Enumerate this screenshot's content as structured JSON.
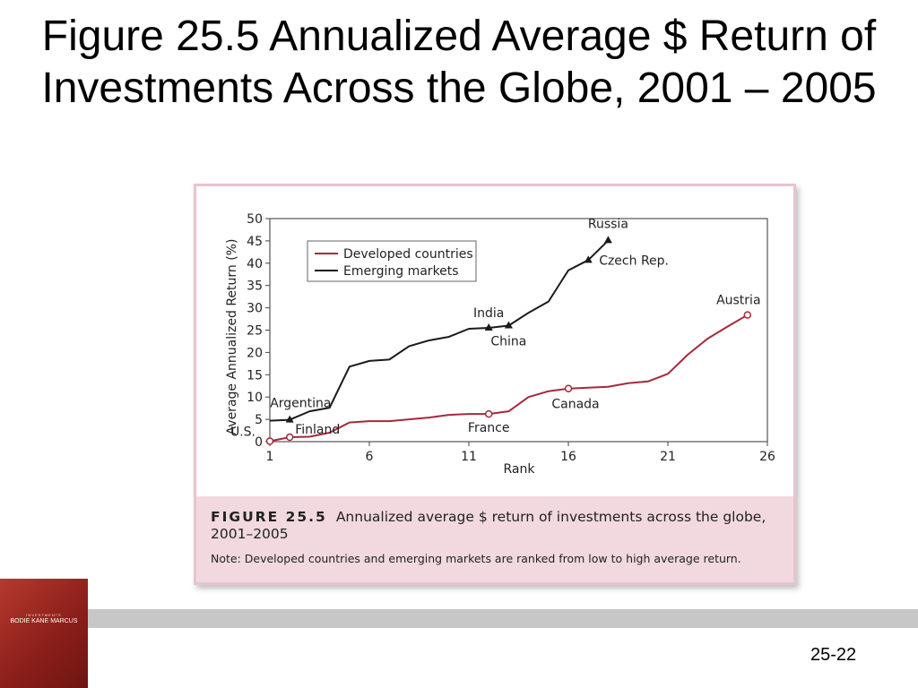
{
  "slide": {
    "title": "Figure 25.5 Annualized Average $ Return of Investments Across the Globe, 2001 – 2005",
    "page_number": "25-22"
  },
  "logo": {
    "small_text": "INVESTMENTS",
    "authors": "BODIE  KANE  MARCUS"
  },
  "caption": {
    "label": "FIGURE  25.5",
    "text": "Annualized average $ return of investments across the globe, 2001–2005",
    "note": "Note: Developed countries and emerging markets are ranked from low to high average return."
  },
  "colors": {
    "developed": "#a52a3a",
    "emerging": "#1a1a1a",
    "panel_border": "#e9c4cd",
    "caption_bg": "#f1d9df"
  },
  "chart_data": {
    "type": "line",
    "xlabel": "Rank",
    "ylabel": "Average Annualized Return (%)",
    "xlim": [
      1,
      26
    ],
    "ylim": [
      0,
      50
    ],
    "x_ticks": [
      1,
      6,
      11,
      16,
      21,
      26
    ],
    "y_ticks": [
      0,
      5,
      10,
      15,
      20,
      25,
      30,
      35,
      40,
      45,
      50
    ],
    "legend": {
      "position": "upper-left"
    },
    "series": [
      {
        "name": "Developed countries",
        "x": [
          1,
          2,
          3,
          4,
          5,
          6,
          7,
          8,
          9,
          10,
          11,
          12,
          13,
          14,
          15,
          16,
          17,
          18,
          19,
          20,
          21,
          22,
          23,
          24,
          25
        ],
        "y": [
          0.1,
          1.0,
          1.1,
          2.0,
          4.3,
          4.6,
          4.6,
          5.0,
          5.4,
          6.0,
          6.2,
          6.2,
          6.8,
          10.0,
          11.3,
          11.9,
          12.1,
          12.3,
          13.1,
          13.5,
          15.2,
          19.5,
          23.1,
          25.8,
          28.4
        ]
      },
      {
        "name": "Emerging markets",
        "x": [
          1,
          2,
          3,
          4,
          5,
          6,
          7,
          8,
          9,
          10,
          11,
          12,
          13,
          14,
          15,
          16,
          17,
          18
        ],
        "y": [
          4.7,
          4.9,
          6.8,
          7.6,
          16.8,
          18.1,
          18.4,
          21.4,
          22.7,
          23.5,
          25.3,
          25.5,
          26.0,
          28.9,
          31.4,
          38.4,
          40.7,
          45.1
        ]
      }
    ],
    "annotations": [
      {
        "text": "U.S.",
        "series": "Developed countries",
        "x": 1,
        "y": 0.1
      },
      {
        "text": "Finland",
        "series": "Developed countries",
        "x": 2,
        "y": 1.0
      },
      {
        "text": "France",
        "series": "Developed countries",
        "x": 12,
        "y": 6.2
      },
      {
        "text": "Canada",
        "series": "Developed countries",
        "x": 16,
        "y": 11.9
      },
      {
        "text": "Austria",
        "series": "Developed countries",
        "x": 25,
        "y": 28.4
      },
      {
        "text": "Argentina",
        "series": "Emerging markets",
        "x": 2,
        "y": 4.9
      },
      {
        "text": "India",
        "series": "Emerging markets",
        "x": 12,
        "y": 25.5
      },
      {
        "text": "China",
        "series": "Emerging markets",
        "x": 13,
        "y": 26.0
      },
      {
        "text": "Czech Rep.",
        "series": "Emerging markets",
        "x": 17,
        "y": 40.7
      },
      {
        "text": "Russia",
        "series": "Emerging markets",
        "x": 18,
        "y": 45.1
      }
    ]
  }
}
